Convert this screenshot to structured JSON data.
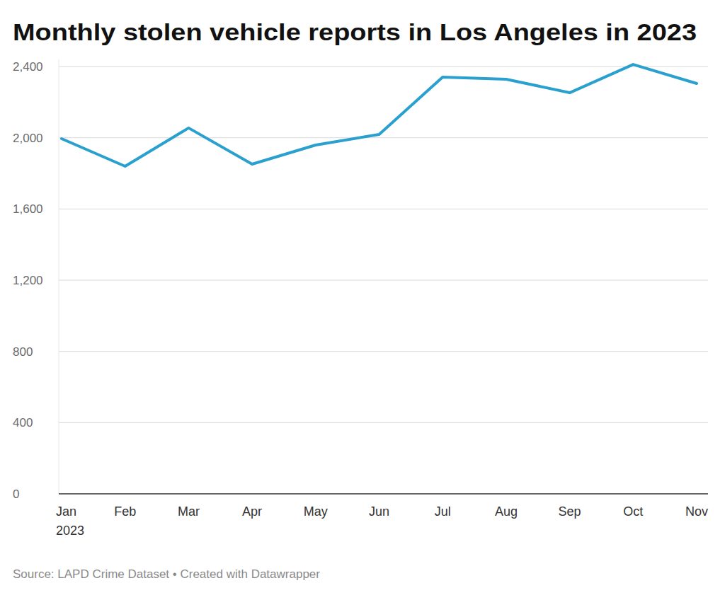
{
  "chart_data": {
    "type": "line",
    "title": "Monthly stolen vehicle reports in Los Angeles in 2023",
    "source": "Source: LAPD Crime Dataset • Created with Datawrapper",
    "categories": [
      "Jan 2023",
      "Feb",
      "Mar",
      "Apr",
      "May",
      "Jun",
      "Jul",
      "Aug",
      "Sep",
      "Oct",
      "Nov"
    ],
    "values": [
      1995,
      1840,
      2055,
      1852,
      1959,
      2019,
      2341,
      2329,
      2253,
      2412,
      2305
    ],
    "color": "#2aa0cf",
    "ylim": [
      0,
      2440
    ],
    "yticks": [
      0,
      400,
      800,
      {
        "value": 1200,
        "label": "1,200"
      },
      {
        "value": 1600,
        "label": "1,600"
      },
      {
        "value": 2000,
        "label": "2,000"
      },
      {
        "value": 2400,
        "label": "2,400"
      }
    ],
    "grid": true
  }
}
